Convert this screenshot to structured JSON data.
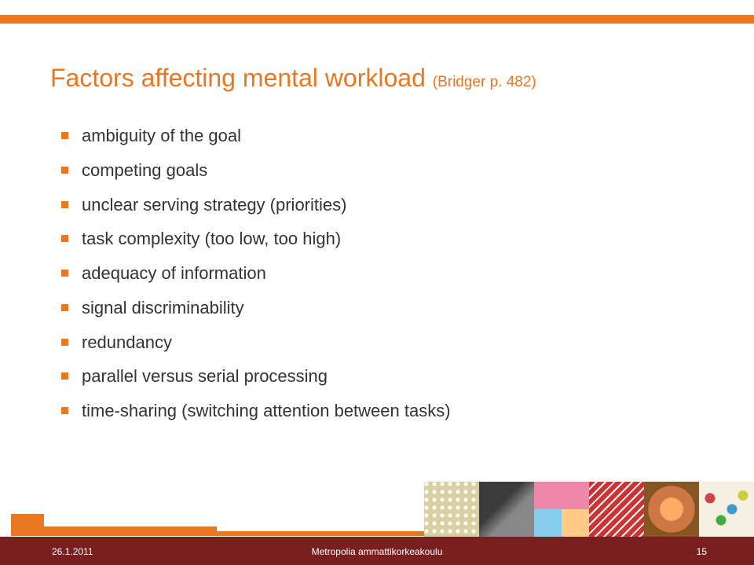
{
  "title": {
    "main": "Factors affecting mental workload ",
    "sub": "(Bridger p. 482)"
  },
  "bullets": [
    "ambiguity of the goal",
    "competing goals",
    "unclear serving strategy (priorities)",
    "task complexity (too low, too high)",
    "adequacy of information",
    "signal discriminability",
    "redundancy",
    "parallel versus serial processing",
    "time-sharing (switching attention between tasks)"
  ],
  "footer": {
    "date": "26.1.2011",
    "center": "Metropolia ammattikorkeakoulu",
    "page": "15"
  },
  "colors": {
    "accent": "#e87722",
    "text": "#333333",
    "footer_band": "#7a1f1f"
  }
}
